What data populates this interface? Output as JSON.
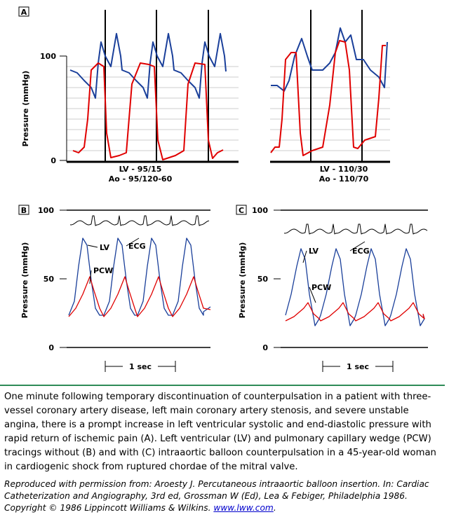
{
  "panels": [
    {
      "label": "A",
      "y_axis_label": "Pressure (mmHg)",
      "yticks": [
        100,
        0
      ],
      "captions": [
        [
          "LV - 95/15",
          "Ao - 95/120-60"
        ],
        [
          "LV - 110/30",
          "Ao - 110/70"
        ]
      ]
    },
    {
      "label": "B",
      "y_axis_label": "Pressure (mmHg)",
      "yticks": [
        100,
        50,
        0
      ],
      "tracings": [
        "LV",
        "PCW",
        "ECG"
      ],
      "scale": "1 sec"
    },
    {
      "label": "C",
      "y_axis_label": "Pressure (mmHg)",
      "yticks": [
        100,
        50,
        0
      ],
      "tracings": [
        "LV",
        "PCW",
        "ECG"
      ],
      "scale": "1 sec"
    }
  ],
  "caption": "One minute following temporary discontinuation of counterpulsation in a patient with three-vessel coronary artery disease, left main coronary artery stenosis, and severe unstable angina, there is a prompt increase in left ventricular systolic and end-diastolic pressure with rapid return of ischemic pain (A). Left ventricular (LV) and pulmonary capillary wedge (PCW) tracings without (B) and with (C) intraaortic balloon counterpulsation in a 45-year-old woman in cardiogenic shock from ruptured chordae of the mitral valve.",
  "credit": {
    "text": "Reproduced with permission from: Aroesty J. Percutaneous intraaortic balloon insertion. In: Cardiac Catheterization and Angiography, 3rd ed, Grossman W (Ed), Lea & Febiger, Philadelphia 1986. Copyright © 1986 Lippincott Williams & Wilkins.",
    "link": "www.lww.com"
  }
}
